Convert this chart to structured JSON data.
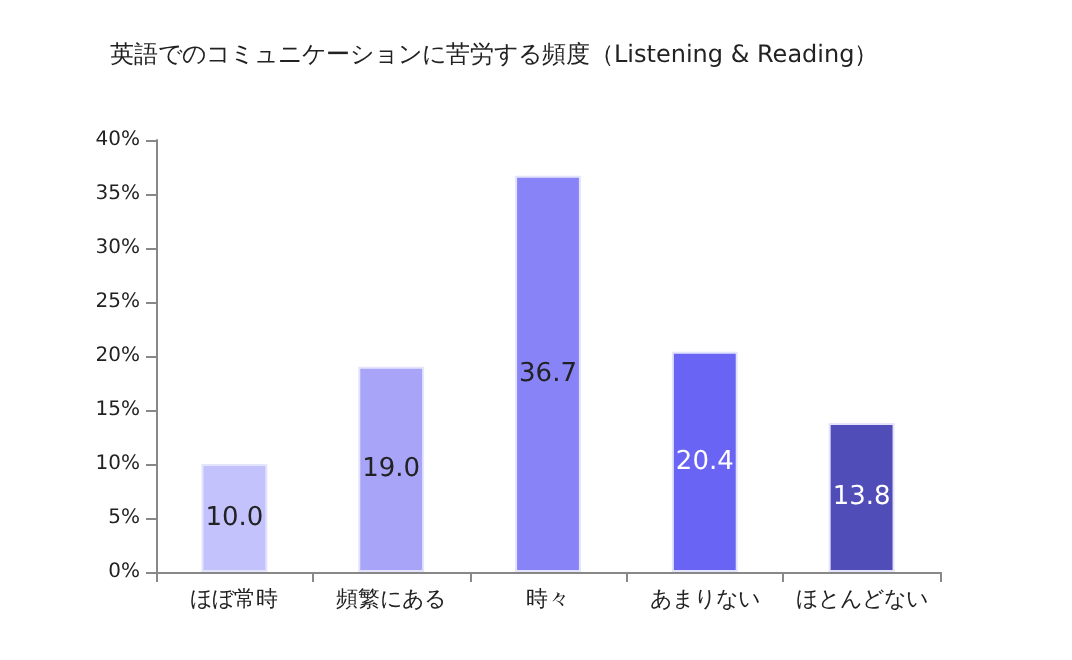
{
  "chart_data": {
    "type": "bar",
    "title": "英語でのコミュニケーションに苦労する頻度（Listening & Reading）",
    "categories": [
      "ほぼ常時",
      "頻繁にある",
      "時々",
      "あまりない",
      "ほとんどない"
    ],
    "values": [
      10.0,
      19.0,
      36.7,
      20.4,
      13.8
    ],
    "value_labels": [
      "10.0",
      "19.0",
      "36.7",
      "20.4",
      "13.8"
    ],
    "colors": [
      "#c4c2fc",
      "#a8a4f8",
      "#8884f8",
      "#6a64f4",
      "#504cb8"
    ],
    "ylim": [
      0,
      40
    ],
    "yticks": [
      {
        "value": 0,
        "label": "0%"
      },
      {
        "value": 5,
        "label": "5%"
      },
      {
        "value": 10,
        "label": "10%"
      },
      {
        "value": 15,
        "label": "15%"
      },
      {
        "value": 20,
        "label": "20%"
      },
      {
        "value": 25,
        "label": "25%"
      },
      {
        "value": 30,
        "label": "30%"
      },
      {
        "value": 35,
        "label": "35%"
      },
      {
        "value": 40,
        "label": "40%"
      }
    ],
    "grid": false
  }
}
